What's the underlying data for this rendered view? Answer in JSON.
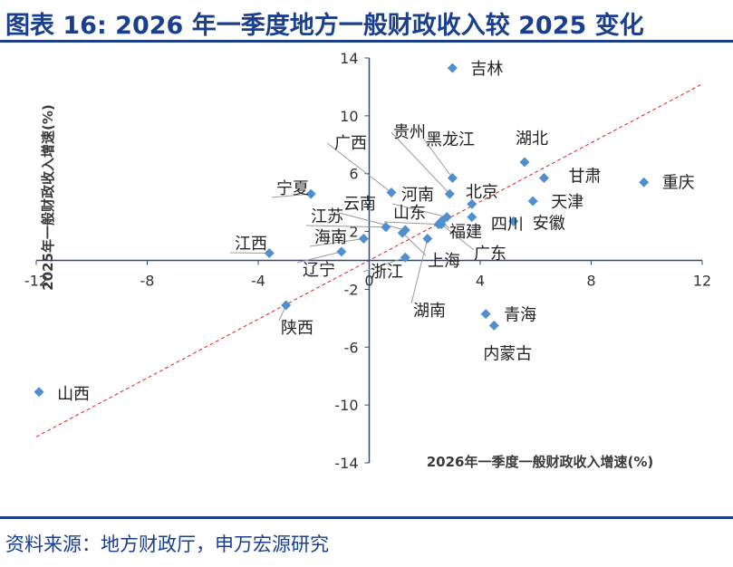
{
  "title": "图表 16: 2026 年一季度地方一般财政收入较 2025 变化",
  "source": "资料来源：地方财政厅，申万宏源研究",
  "chart_data": {
    "type": "scatter",
    "xlabel": "2026年一季度一般财政收入增速(%)",
    "ylabel": "2025年一般财政收入增速(%)",
    "xlim": [
      -12,
      12
    ],
    "ylim": [
      -14,
      14
    ],
    "xticks": [
      -12,
      -8,
      -4,
      0,
      4,
      8,
      12
    ],
    "yticks": [
      -14,
      -10,
      -6,
      -2,
      2,
      6,
      10,
      14
    ],
    "xtick_labels": [
      "-12",
      "-8",
      "-4",
      "0",
      "4",
      "8",
      "12"
    ],
    "ytick_labels": [
      "-14",
      "-10",
      "-6",
      "-2",
      "2",
      "6",
      "10",
      "14"
    ],
    "reference_line": {
      "style": "dashed",
      "color": "#e02020",
      "x": [
        -12,
        12
      ],
      "y": [
        -12.2,
        12.2
      ]
    },
    "marker_color": "#4f8fd0",
    "points": [
      {
        "name": "吉林",
        "x": 3.0,
        "y": 13.3
      },
      {
        "name": "湖北",
        "x": 5.6,
        "y": 6.8
      },
      {
        "name": "甘肃",
        "x": 6.3,
        "y": 5.7
      },
      {
        "name": "重庆",
        "x": 9.9,
        "y": 5.4
      },
      {
        "name": "天津",
        "x": 5.9,
        "y": 4.1
      },
      {
        "name": "安徽",
        "x": 5.2,
        "y": 2.7
      },
      {
        "name": "四川",
        "x": 3.7,
        "y": 3.0
      },
      {
        "name": "北京",
        "x": 3.7,
        "y": 3.9
      },
      {
        "name": "黑龙江",
        "x": 3.0,
        "y": 5.7
      },
      {
        "name": "贵州",
        "x": 2.9,
        "y": 4.6
      },
      {
        "name": "广西",
        "x": 0.8,
        "y": 4.7
      },
      {
        "name": "河南",
        "x": 2.8,
        "y": 3.0
      },
      {
        "name": "福建",
        "x": 2.6,
        "y": 2.7
      },
      {
        "name": "山东",
        "x": 2.5,
        "y": 2.5
      },
      {
        "name": "广东",
        "x": 2.6,
        "y": 2.5
      },
      {
        "name": "云南",
        "x": 1.3,
        "y": 2.1
      },
      {
        "name": "江苏",
        "x": 0.6,
        "y": 2.3
      },
      {
        "name": "宁夏",
        "x": -2.1,
        "y": 4.6
      },
      {
        "name": "海南",
        "x": -0.2,
        "y": 1.5
      },
      {
        "name": "上海",
        "x": 1.2,
        "y": 1.9
      },
      {
        "name": "湖南",
        "x": 2.1,
        "y": 1.5
      },
      {
        "name": "浙江",
        "x": 1.3,
        "y": 0.2
      },
      {
        "name": "辽宁",
        "x": -1.0,
        "y": 0.6
      },
      {
        "name": "江西",
        "x": -3.6,
        "y": 0.5
      },
      {
        "name": "陕西",
        "x": -3.0,
        "y": -3.1
      },
      {
        "name": "青海",
        "x": 4.2,
        "y": -3.7
      },
      {
        "name": "内蒙古",
        "x": 4.5,
        "y": -4.5
      },
      {
        "name": "山西",
        "x": -11.9,
        "y": -9.1
      }
    ]
  }
}
